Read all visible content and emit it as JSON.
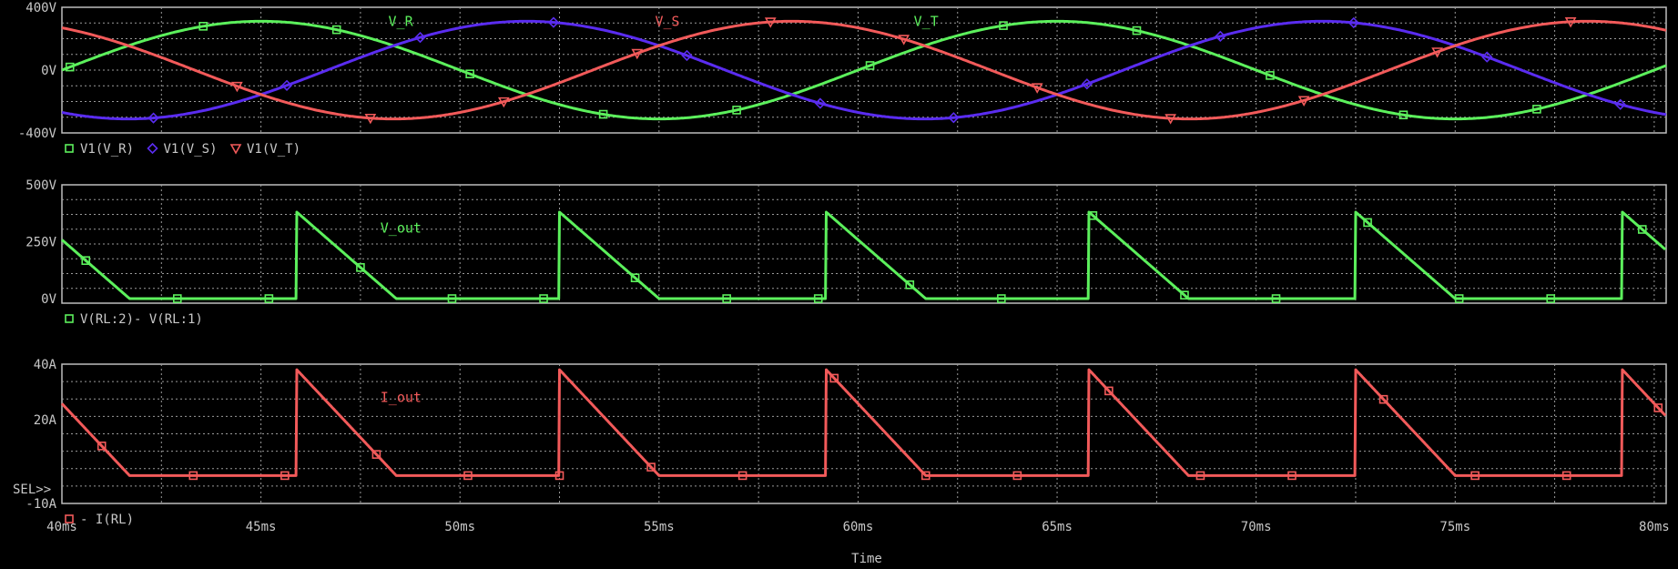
{
  "colors": {
    "green": "#5cf05c",
    "blue": "#5a2cf0",
    "red": "#f25a5a",
    "text": "#c8c8c8",
    "background": "#000000"
  },
  "x_axis": {
    "label": "Time",
    "ticks": [
      "40ms",
      "45ms",
      "50ms",
      "55ms",
      "60ms",
      "65ms",
      "70ms",
      "75ms",
      "80ms"
    ],
    "range_ms": [
      40,
      80.3
    ]
  },
  "sel_marker": "SEL>>",
  "chart_data": [
    {
      "type": "line",
      "panel": 1,
      "ylim": [
        -400,
        400
      ],
      "yticks": [
        "400V",
        "0V",
        "-400V"
      ],
      "legend": [
        {
          "marker": "square",
          "color": "#5cf05c",
          "text": "V1(V_R)"
        },
        {
          "marker": "diamond",
          "color": "#5a2cf0",
          "text": "V1(V_S)"
        },
        {
          "marker": "triangle",
          "color": "#f25a5a",
          "text": "V1(V_T)"
        }
      ],
      "annotations": [
        {
          "text": "V_R",
          "color": "#5cf05c",
          "x_ms": 48.2,
          "y": 310
        },
        {
          "text": "V_S",
          "color": "#f25a5a",
          "x_ms": 54.9,
          "y": 310
        },
        {
          "text": "V_T",
          "color": "#5cf05c",
          "x_ms": 61.4,
          "y": 310
        }
      ],
      "series": [
        {
          "name": "V1(V_R)",
          "color": "#5cf05c",
          "marker": "square",
          "amplitude": 311,
          "phase_deg": 0,
          "frequency_hz": 50
        },
        {
          "name": "V1(V_S)",
          "color": "#5a2cf0",
          "marker": "diamond",
          "amplitude": 311,
          "phase_deg": -120,
          "frequency_hz": 50
        },
        {
          "name": "V1(V_T)",
          "color": "#f25a5a",
          "marker": "triangle",
          "amplitude": 311,
          "phase_deg": 120,
          "frequency_hz": 50
        }
      ]
    },
    {
      "type": "line",
      "panel": 2,
      "ylim": [
        -20,
        500
      ],
      "yticks": [
        "500V",
        "250V",
        "0V"
      ],
      "legend": [
        {
          "marker": "square",
          "color": "#5cf05c",
          "text": "V(RL:2)- V(RL:1)"
        }
      ],
      "annotations": [
        {
          "text": "V_out",
          "color": "#5cf05c",
          "x_ms": 48.0,
          "y": 310
        }
      ],
      "series": [
        {
          "name": "V(RL:2)- V(RL:1)",
          "color": "#5cf05c",
          "marker": "square",
          "pulse_starts_ms": [
            39.2,
            45.9,
            52.5,
            59.2,
            65.8,
            72.5,
            79.2
          ],
          "pulse_peak": 380,
          "pulse_width_ms": 2.5
        }
      ]
    },
    {
      "type": "line",
      "panel": 3,
      "ylim": [
        -10,
        40
      ],
      "yticks": [
        "40A",
        "20A",
        "-10A"
      ],
      "legend": [
        {
          "marker": "square",
          "color": "#f25a5a",
          "text": "- I(RL)"
        }
      ],
      "annotations": [
        {
          "text": "I_out",
          "color": "#f25a5a",
          "x_ms": 48.0,
          "y": 28
        }
      ],
      "series": [
        {
          "name": "- I(RL)",
          "color": "#f25a5a",
          "marker": "square",
          "pulse_starts_ms": [
            39.2,
            45.9,
            52.5,
            59.2,
            65.8,
            72.5,
            79.2
          ],
          "pulse_peak": 38,
          "pulse_width_ms": 2.5
        }
      ]
    }
  ]
}
